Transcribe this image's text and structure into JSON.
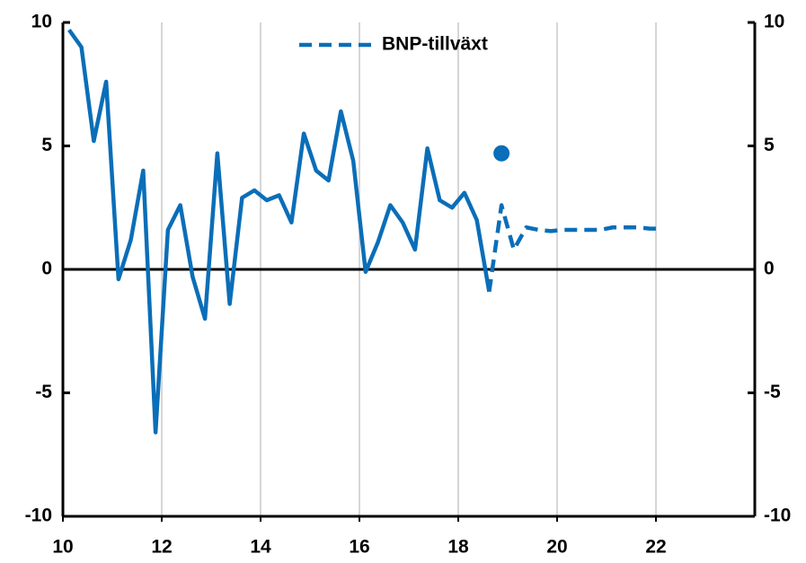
{
  "chart_data": {
    "type": "line",
    "xlim": [
      10,
      24
    ],
    "xticks": [
      10,
      12,
      14,
      16,
      18,
      20,
      22
    ],
    "ylim": [
      -10,
      10
    ],
    "yticks": [
      -10,
      -5,
      0,
      5,
      10
    ],
    "y2lim": [
      -10,
      10
    ],
    "y2ticks": [
      -10,
      -5,
      0,
      5,
      10
    ],
    "grid": true,
    "legend": "top",
    "series": [
      {
        "color": "#0a6eb8",
        "dash": false,
        "x": [
          10.125,
          10.375,
          10.625,
          10.875,
          11.125,
          11.375,
          11.625,
          11.875,
          12.125,
          12.375,
          12.625,
          12.875,
          13.125,
          13.375,
          13.625,
          13.875,
          14.125,
          14.375,
          14.625,
          14.875,
          15.125,
          15.375,
          15.625,
          15.875,
          16.125,
          16.375,
          16.625,
          16.875,
          17.125,
          17.375,
          17.625,
          17.875,
          18.125,
          18.375,
          18.625
        ],
        "values": [
          9.7,
          9.0,
          5.2,
          7.6,
          -0.4,
          1.2,
          4.0,
          -6.6,
          1.6,
          2.6,
          -0.3,
          -2.0,
          4.7,
          -1.4,
          2.9,
          3.2,
          2.8,
          3.0,
          1.9,
          5.5,
          4.0,
          3.6,
          6.4,
          4.4,
          -0.1,
          1.1,
          2.6,
          1.9,
          0.8,
          4.9,
          2.8,
          2.5,
          3.1,
          2.0,
          -0.9
        ]
      },
      {
        "name": "BNP-tillväxt",
        "color": "#0a6eb8",
        "dash": true,
        "x": [
          18.625,
          18.875,
          19.125,
          19.375,
          19.625,
          19.875,
          20.125,
          20.375,
          20.625,
          20.875,
          21.125,
          21.375,
          21.625,
          21.875,
          22.125
        ],
        "values": [
          -0.9,
          2.6,
          0.8,
          1.7,
          1.6,
          1.55,
          1.6,
          1.6,
          1.6,
          1.6,
          1.7,
          1.7,
          1.7,
          1.65,
          1.65
        ]
      },
      {
        "color": "#0a6eb8",
        "marker": "dot",
        "x": [
          18.875
        ],
        "values": [
          4.7
        ]
      }
    ]
  }
}
